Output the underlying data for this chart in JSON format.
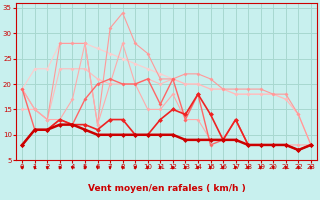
{
  "xlabel": "Vent moyen/en rafales ( km/h )",
  "xlim": [
    -0.5,
    23.5
  ],
  "ylim": [
    5,
    36
  ],
  "yticks": [
    5,
    10,
    15,
    20,
    25,
    30,
    35
  ],
  "xticks": [
    0,
    1,
    2,
    3,
    4,
    5,
    6,
    7,
    8,
    9,
    10,
    11,
    12,
    13,
    14,
    15,
    16,
    17,
    18,
    19,
    20,
    21,
    22,
    23
  ],
  "background_color": "#c8f0ee",
  "grid_color": "#a8d8d0",
  "lines": [
    {
      "x": [
        0,
        1,
        2,
        3,
        4,
        5,
        6,
        7,
        8,
        9,
        10,
        11,
        12,
        13,
        14,
        15,
        16,
        17,
        18,
        19,
        20,
        21,
        22,
        23
      ],
      "y": [
        19,
        23,
        23,
        28,
        28,
        28,
        27,
        26,
        25,
        24,
        23,
        22,
        21,
        20,
        20,
        19,
        19,
        18,
        18,
        18,
        18,
        17,
        14,
        8
      ],
      "color": "#ffcccc",
      "lw": 0.8,
      "marker": "D",
      "ms": 2.0
    },
    {
      "x": [
        0,
        1,
        2,
        3,
        4,
        5,
        6,
        7,
        8,
        9,
        10,
        11,
        12,
        13,
        14,
        15,
        16,
        17,
        18,
        19,
        20,
        21,
        22,
        23
      ],
      "y": [
        15,
        15,
        13,
        23,
        23,
        23,
        21,
        20,
        20,
        20,
        21,
        20,
        21,
        20,
        20,
        19,
        19,
        18,
        18,
        18,
        18,
        17,
        14,
        8
      ],
      "color": "#ffbbbb",
      "lw": 0.8,
      "marker": "D",
      "ms": 2.0
    },
    {
      "x": [
        0,
        1,
        2,
        3,
        4,
        5,
        6,
        7,
        8,
        9,
        10,
        11,
        12,
        13,
        14,
        15,
        16,
        17,
        18,
        19,
        20,
        21,
        22,
        23
      ],
      "y": [
        19,
        15,
        13,
        28,
        28,
        28,
        12,
        31,
        34,
        28,
        26,
        21,
        21,
        22,
        22,
        21,
        19,
        19,
        19,
        19,
        18,
        18,
        14,
        8
      ],
      "color": "#ff9999",
      "lw": 0.8,
      "marker": "D",
      "ms": 2.0
    },
    {
      "x": [
        0,
        1,
        2,
        3,
        4,
        5,
        6,
        7,
        8,
        9,
        10,
        11,
        12,
        13,
        14,
        15,
        16,
        17,
        18,
        19,
        20,
        21,
        22,
        23
      ],
      "y": [
        19,
        15,
        13,
        13,
        17,
        28,
        12,
        20,
        28,
        20,
        15,
        15,
        18,
        13,
        13,
        9,
        9,
        13,
        8,
        8,
        8,
        8,
        8,
        8
      ],
      "color": "#ffaaaa",
      "lw": 0.8,
      "marker": "D",
      "ms": 2.0
    },
    {
      "x": [
        0,
        1,
        2,
        3,
        4,
        5,
        6,
        7,
        8,
        9,
        10,
        11,
        12,
        13,
        14,
        15,
        16,
        17,
        18,
        19,
        20,
        21,
        22,
        23
      ],
      "y": [
        19,
        11,
        11,
        13,
        12,
        17,
        20,
        21,
        20,
        20,
        21,
        16,
        21,
        13,
        18,
        8,
        9,
        13,
        8,
        8,
        8,
        8,
        7,
        8
      ],
      "color": "#ff6666",
      "lw": 1.0,
      "marker": "D",
      "ms": 2.0
    },
    {
      "x": [
        0,
        1,
        2,
        3,
        4,
        5,
        6,
        7,
        8,
        9,
        10,
        11,
        12,
        13,
        14,
        15,
        16,
        17,
        18,
        19,
        20,
        21,
        22,
        23
      ],
      "y": [
        8,
        11,
        11,
        13,
        12,
        12,
        11,
        13,
        13,
        10,
        10,
        13,
        15,
        14,
        18,
        14,
        9,
        13,
        8,
        8,
        8,
        8,
        7,
        8
      ],
      "color": "#ee2222",
      "lw": 1.2,
      "marker": "D",
      "ms": 2.5
    },
    {
      "x": [
        0,
        1,
        2,
        3,
        4,
        5,
        6,
        7,
        8,
        9,
        10,
        11,
        12,
        13,
        14,
        15,
        16,
        17,
        18,
        19,
        20,
        21,
        22,
        23
      ],
      "y": [
        8,
        11,
        11,
        12,
        12,
        11,
        10,
        10,
        10,
        10,
        10,
        10,
        10,
        9,
        9,
        9,
        9,
        9,
        8,
        8,
        8,
        8,
        7,
        8
      ],
      "color": "#cc0000",
      "lw": 1.8,
      "marker": "D",
      "ms": 2.5
    }
  ],
  "arrow_color": "#cc0000",
  "tick_color": "#cc0000",
  "label_color": "#cc0000",
  "xlabel_fontsize": 6.5,
  "tick_fontsize": 5
}
